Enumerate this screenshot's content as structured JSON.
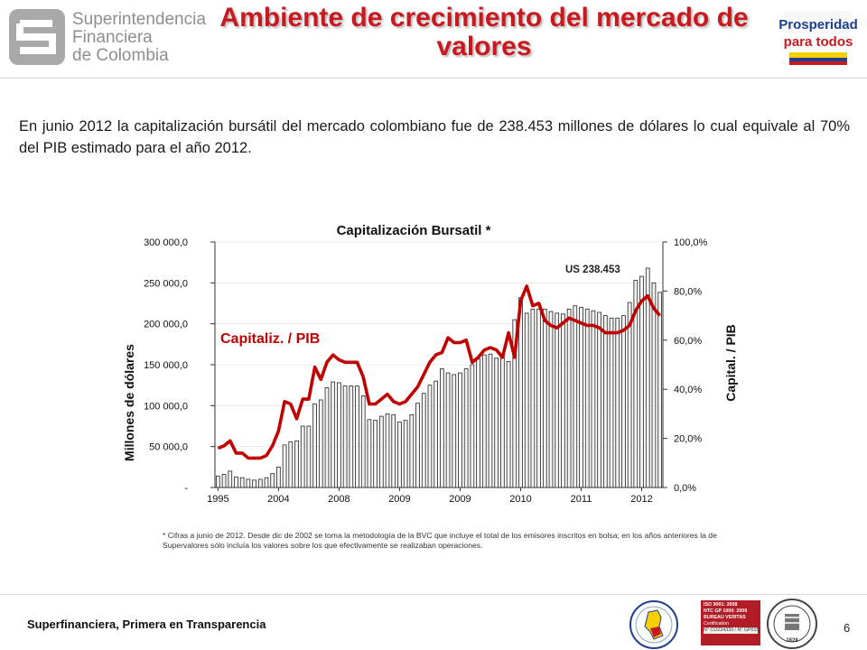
{
  "header": {
    "org_line1": "Superintendencia",
    "org_line2": "Financiera",
    "org_line3": "de Colombia",
    "title": "Ambiente de crecimiento del mercado de valores",
    "right_logo_line1": "Prosperidad",
    "right_logo_line2": "para todos"
  },
  "intro": {
    "part1": "En junio 2012 la capitalización bursátil del mercado colombiano fue de 238.453 millones de dólares  lo cual equivale al 70%",
    "part2": " ",
    "part3": "del PIB estimado para el año 2012."
  },
  "chart_data": {
    "type": "bar",
    "title": "Capitalización Bursatil *",
    "ylabel": "Millones de dólares",
    "y2label": "Capital. / PIB",
    "ylim": [
      0,
      300000
    ],
    "y2lim": [
      0,
      100
    ],
    "yticks": [
      "-",
      "50 000,0",
      "100 000,0",
      "150 000,0",
      "200 000,0",
      "250 000,0",
      "300 000,0"
    ],
    "y2ticks": [
      "0,0%",
      "20,0%",
      "40,0%",
      "60,0%",
      "80,0%",
      "100,0%"
    ],
    "xtick_labels": [
      {
        "label": "1995",
        "index": 0
      },
      {
        "label": "2004",
        "index": 10
      },
      {
        "label": "2008",
        "index": 20
      },
      {
        "label": "2009",
        "index": 30
      },
      {
        "label": "2009",
        "index": 40
      },
      {
        "label": "2010",
        "index": 50
      },
      {
        "label": "2011",
        "index": 60
      },
      {
        "label": "2012",
        "index": 70
      }
    ],
    "annotations": [
      {
        "text": "Capitaliz. / PIB",
        "color": "#c00000"
      },
      {
        "text": "US 238.453",
        "color": "#222222"
      }
    ],
    "series": [
      {
        "name": "",
        "kind": "bar",
        "color": "#f2f2f2",
        "values": [
          14000,
          16000,
          20000,
          13000,
          12000,
          10000,
          9000,
          10000,
          12000,
          17000,
          25000,
          52000,
          56000,
          57000,
          75000,
          75000,
          102000,
          107000,
          122000,
          129000,
          128000,
          124000,
          124000,
          124000,
          112000,
          83000,
          82000,
          87000,
          90000,
          89000,
          80000,
          82000,
          89000,
          103000,
          115000,
          125000,
          130000,
          145000,
          140000,
          138000,
          140000,
          145000,
          150000,
          157000,
          162000,
          163000,
          158000,
          162000,
          154000,
          205000,
          232000,
          213000,
          218000,
          218000,
          218000,
          215000,
          213000,
          212000,
          218000,
          222000,
          220000,
          218000,
          216000,
          214000,
          210000,
          207000,
          207000,
          210000,
          226000,
          253000,
          258000,
          268000,
          250000,
          238453
        ]
      },
      {
        "name": "",
        "kind": "line",
        "color": "#c00000",
        "values": [
          16,
          17,
          19,
          14,
          14,
          12,
          12,
          12,
          13,
          17,
          23,
          35,
          34,
          28,
          36,
          36,
          49,
          44,
          51,
          54,
          52,
          51,
          51,
          51,
          45,
          34,
          34,
          36,
          38,
          35,
          34,
          35,
          38,
          41,
          46,
          51,
          54,
          55,
          61,
          59,
          59,
          60,
          51,
          53,
          56,
          57,
          56,
          53,
          63,
          53,
          76,
          82,
          74,
          75,
          68,
          66,
          65,
          67,
          69,
          68,
          67,
          66,
          66,
          65,
          63,
          63,
          63,
          64,
          66,
          72,
          76,
          78,
          73,
          70
        ]
      }
    ]
  },
  "footnote": "* Cifras a junio de 2012. Desde dic de 2002 se toma la  metodología de la BVC que incluye el total de los emisores inscritos en bolsa; en los años anteriores la de Supervalores sólo incluía los valores sobre los que efectivamente se realizaban operaciones.",
  "footer": {
    "tagline": "Superfinanciera, Primera en Transparencia",
    "page_number": "6",
    "iso_line1": "ISO 9001: 2008",
    "iso_line2": "NTC GP 1000: 2009",
    "iso_line3": "BUREAU VERITAS",
    "iso_line4": "Certification",
    "iso_line5": "N° CO234339 / N° GP0151",
    "bv_year": "1828"
  }
}
